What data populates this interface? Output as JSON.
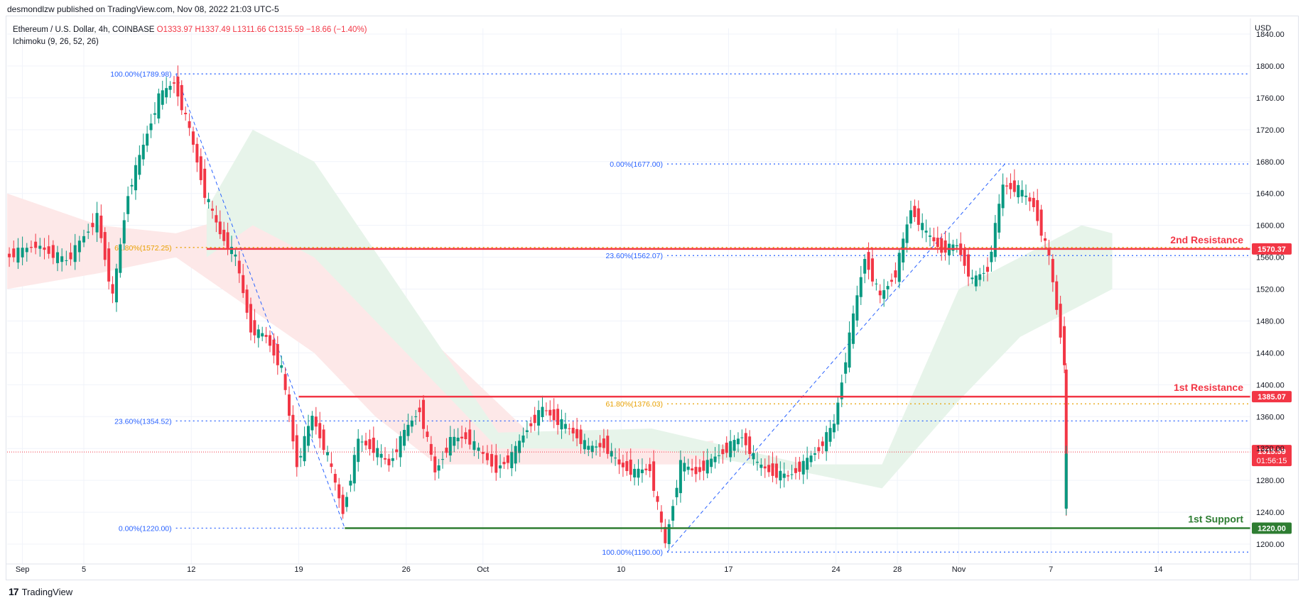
{
  "header": {
    "published": "desmondlzw published on TradingView.com, Nov 08, 2022 21:03 UTC-5"
  },
  "legend": {
    "symbol": "Ethereum / U.S. Dollar, 4h, COINBASE",
    "o": "O1333.97",
    "h": "H1337.49",
    "l": "L1311.66",
    "c": "C1315.59",
    "change": "−18.66 (−1.40%)",
    "indicator": "Ichimoku (9, 26, 52, 26)"
  },
  "footer": {
    "brand": "TradingView"
  },
  "chart_data": {
    "type": "candlestick",
    "currency": "USD",
    "ylim": [
      1180,
      1850
    ],
    "y_ticks": [
      1840,
      1800,
      1760,
      1720,
      1680,
      1640,
      1600,
      1560,
      1520,
      1480,
      1440,
      1400,
      1360,
      1320,
      1280,
      1240,
      1200
    ],
    "x_ticks": [
      "Sep",
      "5",
      "12",
      "19",
      "26",
      "Oct",
      "10",
      "17",
      "24",
      "28",
      "Nov",
      "7",
      "14"
    ],
    "x_tick_dates": [
      "2022-09-01",
      "2022-09-05",
      "2022-09-12",
      "2022-09-19",
      "2022-09-26",
      "2022-10-01",
      "2022-10-10",
      "2022-10-17",
      "2022-10-24",
      "2022-10-28",
      "2022-11-01",
      "2022-11-07",
      "2022-11-14"
    ],
    "last_price": {
      "value": "1315.59",
      "countdown": "01:56:15"
    },
    "price_path": [
      [
        "2022-08-31",
        1560
      ],
      [
        "2022-09-02",
        1575
      ],
      [
        "2022-09-04",
        1555
      ],
      [
        "2022-09-06",
        1610
      ],
      [
        "2022-09-07",
        1510
      ],
      [
        "2022-09-08",
        1640
      ],
      [
        "2022-09-09",
        1700
      ],
      [
        "2022-09-10",
        1760
      ],
      [
        "2022-09-11",
        1780
      ],
      [
        "2022-09-12",
        1720
      ],
      [
        "2022-09-13",
        1640
      ],
      [
        "2022-09-14",
        1590
      ],
      [
        "2022-09-15",
        1560
      ],
      [
        "2022-09-16",
        1470
      ],
      [
        "2022-09-17",
        1460
      ],
      [
        "2022-09-18",
        1420
      ],
      [
        "2022-09-19",
        1300
      ],
      [
        "2022-09-20",
        1360
      ],
      [
        "2022-09-21",
        1310
      ],
      [
        "2022-09-22",
        1240
      ],
      [
        "2022-09-23",
        1330
      ],
      [
        "2022-09-24",
        1320
      ],
      [
        "2022-09-25",
        1300
      ],
      [
        "2022-09-26",
        1340
      ],
      [
        "2022-09-27",
        1370
      ],
      [
        "2022-09-28",
        1290
      ],
      [
        "2022-09-29",
        1330
      ],
      [
        "2022-09-30",
        1335
      ],
      [
        "2022-10-02",
        1295
      ],
      [
        "2022-10-03",
        1310
      ],
      [
        "2022-10-04",
        1345
      ],
      [
        "2022-10-05",
        1370
      ],
      [
        "2022-10-06",
        1355
      ],
      [
        "2022-10-07",
        1340
      ],
      [
        "2022-10-08",
        1320
      ],
      [
        "2022-10-09",
        1325
      ],
      [
        "2022-10-10",
        1300
      ],
      [
        "2022-10-11",
        1290
      ],
      [
        "2022-10-12",
        1295
      ],
      [
        "2022-10-13",
        1200
      ],
      [
        "2022-10-14",
        1300
      ],
      [
        "2022-10-15",
        1290
      ],
      [
        "2022-10-16",
        1305
      ],
      [
        "2022-10-17",
        1320
      ],
      [
        "2022-10-18",
        1335
      ],
      [
        "2022-10-19",
        1300
      ],
      [
        "2022-10-20",
        1290
      ],
      [
        "2022-10-21",
        1285
      ],
      [
        "2022-10-22",
        1300
      ],
      [
        "2022-10-23",
        1320
      ],
      [
        "2022-10-24",
        1350
      ],
      [
        "2022-10-25",
        1460
      ],
      [
        "2022-10-26",
        1560
      ],
      [
        "2022-10-27",
        1510
      ],
      [
        "2022-10-28",
        1540
      ],
      [
        "2022-10-29",
        1620
      ],
      [
        "2022-10-30",
        1590
      ],
      [
        "2022-10-31",
        1570
      ],
      [
        "2022-11-01",
        1575
      ],
      [
        "2022-11-02",
        1530
      ],
      [
        "2022-11-03",
        1545
      ],
      [
        "2022-11-04",
        1650
      ],
      [
        "2022-11-05",
        1645
      ],
      [
        "2022-11-06",
        1625
      ],
      [
        "2022-11-07",
        1560
      ],
      [
        "2022-11-08",
        1430
      ],
      [
        "2022-11-08",
        1240
      ],
      [
        "2022-11-08",
        1315.59
      ]
    ],
    "levels": [
      {
        "value": 1570.37,
        "price_label": "1570.37",
        "text": "2nd Resistance",
        "color": "#f23645",
        "x_from": "2022-09-13"
      },
      {
        "value": 1385.07,
        "price_label": "1385.07",
        "text": "1st Resistance",
        "color": "#f23645",
        "x_from": "2022-09-19"
      },
      {
        "value": 1220.0,
        "price_label": "1220.00",
        "text": "1st Support",
        "color": "#2e7d32",
        "x_from": "2022-09-22"
      }
    ],
    "fib_levels": [
      {
        "label": "100.00%(1789.98)",
        "value": 1789.98,
        "color": "#2962ff",
        "x_from": "2022-09-11"
      },
      {
        "label": "61.80%(1572.25)",
        "value": 1572.25,
        "color": "#e8a000",
        "x_from": "2022-09-11"
      },
      {
        "label": "23.60%(1354.52)",
        "value": 1354.52,
        "color": "#2962ff",
        "x_from": "2022-09-11"
      },
      {
        "label": "0.00%(1220.00)",
        "value": 1220.0,
        "color": "#2962ff",
        "x_from": "2022-09-11"
      },
      {
        "label": "0.00%(1677.00)",
        "value": 1677.0,
        "color": "#2962ff",
        "x_from": "2022-10-13"
      },
      {
        "label": "23.60%(1562.07)",
        "value": 1562.07,
        "color": "#2962ff",
        "x_from": "2022-10-13"
      },
      {
        "label": "61.80%(1376.03)",
        "value": 1376.03,
        "color": "#e8a000",
        "x_from": "2022-10-13"
      },
      {
        "label": "100.00%(1190.00)",
        "value": 1190.0,
        "color": "#2962ff",
        "x_from": "2022-10-13"
      }
    ],
    "fib_trendlines": [
      {
        "from": [
          "2022-09-11",
          1789.98
        ],
        "to": [
          "2022-09-22",
          1220.0
        ]
      },
      {
        "from": [
          "2022-10-13",
          1190.0
        ],
        "to": [
          "2022-11-04",
          1677.0
        ]
      }
    ],
    "colors": {
      "up": "#089981",
      "down": "#f23645",
      "cloud_bull": "#e7f4ea",
      "cloud_bear": "#fde8e8",
      "grid": "#f0f3fa"
    }
  }
}
